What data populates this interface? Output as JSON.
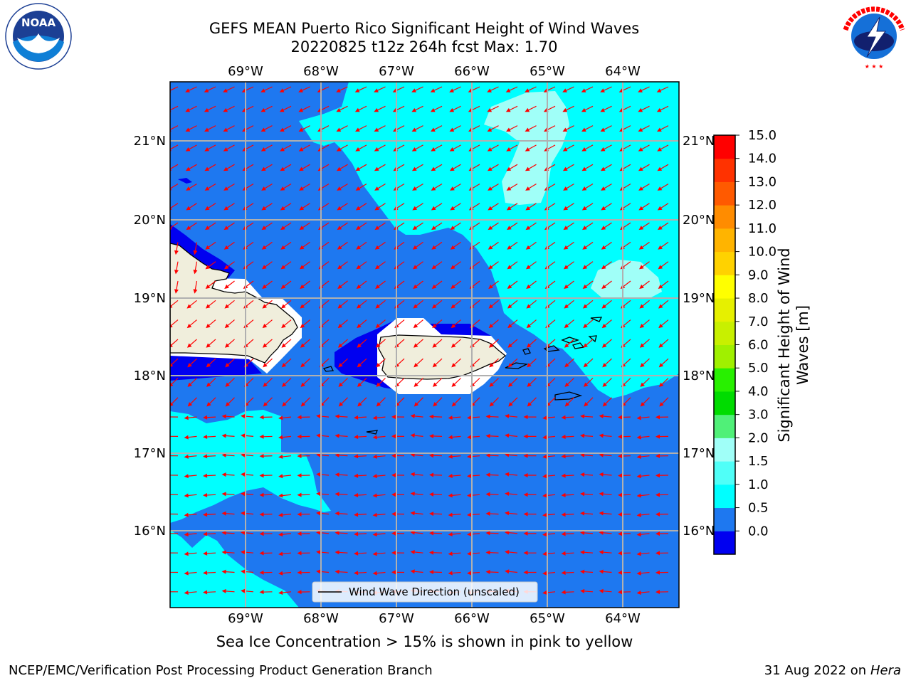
{
  "header": {
    "title_line1": "GEFS MEAN Puerto Rico Significant Height of Wind Waves",
    "title_line2": "20220825 t12z 264h fcst   Max: 1.70"
  },
  "logos": {
    "left": {
      "text": "NOAA",
      "ring_text": "NATIONAL OCEANIC AND ATMOSPHERIC ADMINISTRATION · U.S. DEPARTMENT OF COMMERCE"
    },
    "right": {
      "ring_text": "NATIONAL WEATHER SERVICE"
    }
  },
  "map": {
    "lon_labels": [
      "69°W",
      "68°W",
      "67°W",
      "66°W",
      "65°W",
      "64°W"
    ],
    "lat_labels": [
      "21°N",
      "20°N",
      "19°N",
      "18°N",
      "17°N",
      "16°N"
    ],
    "legend_label": "Wind Wave Direction (unscaled)",
    "colors": {
      "deep_blue": "#0000f0",
      "blue": "#1e78f0",
      "cyan": "#00ffff",
      "light_cyan": "#a0fff8",
      "land": "#f0eedc",
      "arrow": "#ff0000",
      "grid": "#b0b0b0"
    }
  },
  "colorbar": {
    "ticks": [
      "15.0",
      "14.0",
      "13.0",
      "12.0",
      "11.0",
      "10.0",
      "9.0",
      "8.0",
      "7.0",
      "6.0",
      "5.0",
      "4.0",
      "3.0",
      "2.0",
      "1.5",
      "1.0",
      "0.5",
      "0.0"
    ],
    "colors_bottom_to_top": [
      "#0000f0",
      "#1e78f0",
      "#00ffff",
      "#50fff8",
      "#a0fff8",
      "#50f078",
      "#00dc00",
      "#28f000",
      "#a0f000",
      "#c8f000",
      "#e6f000",
      "#ffff00",
      "#ffd200",
      "#ffb400",
      "#ff8c00",
      "#ff5a00",
      "#ff3200",
      "#ff0000"
    ],
    "label_line1": "Significant Height of Wind",
    "label_line2": "Waves [m]"
  },
  "notes": {
    "sea_ice": "Sea Ice Concentration > 15% is shown in pink to yellow",
    "producer": "NCEP/EMC/Verification Post Processing Product Generation Branch",
    "date": "31 Aug 2022 on",
    "machine": "Hera"
  }
}
